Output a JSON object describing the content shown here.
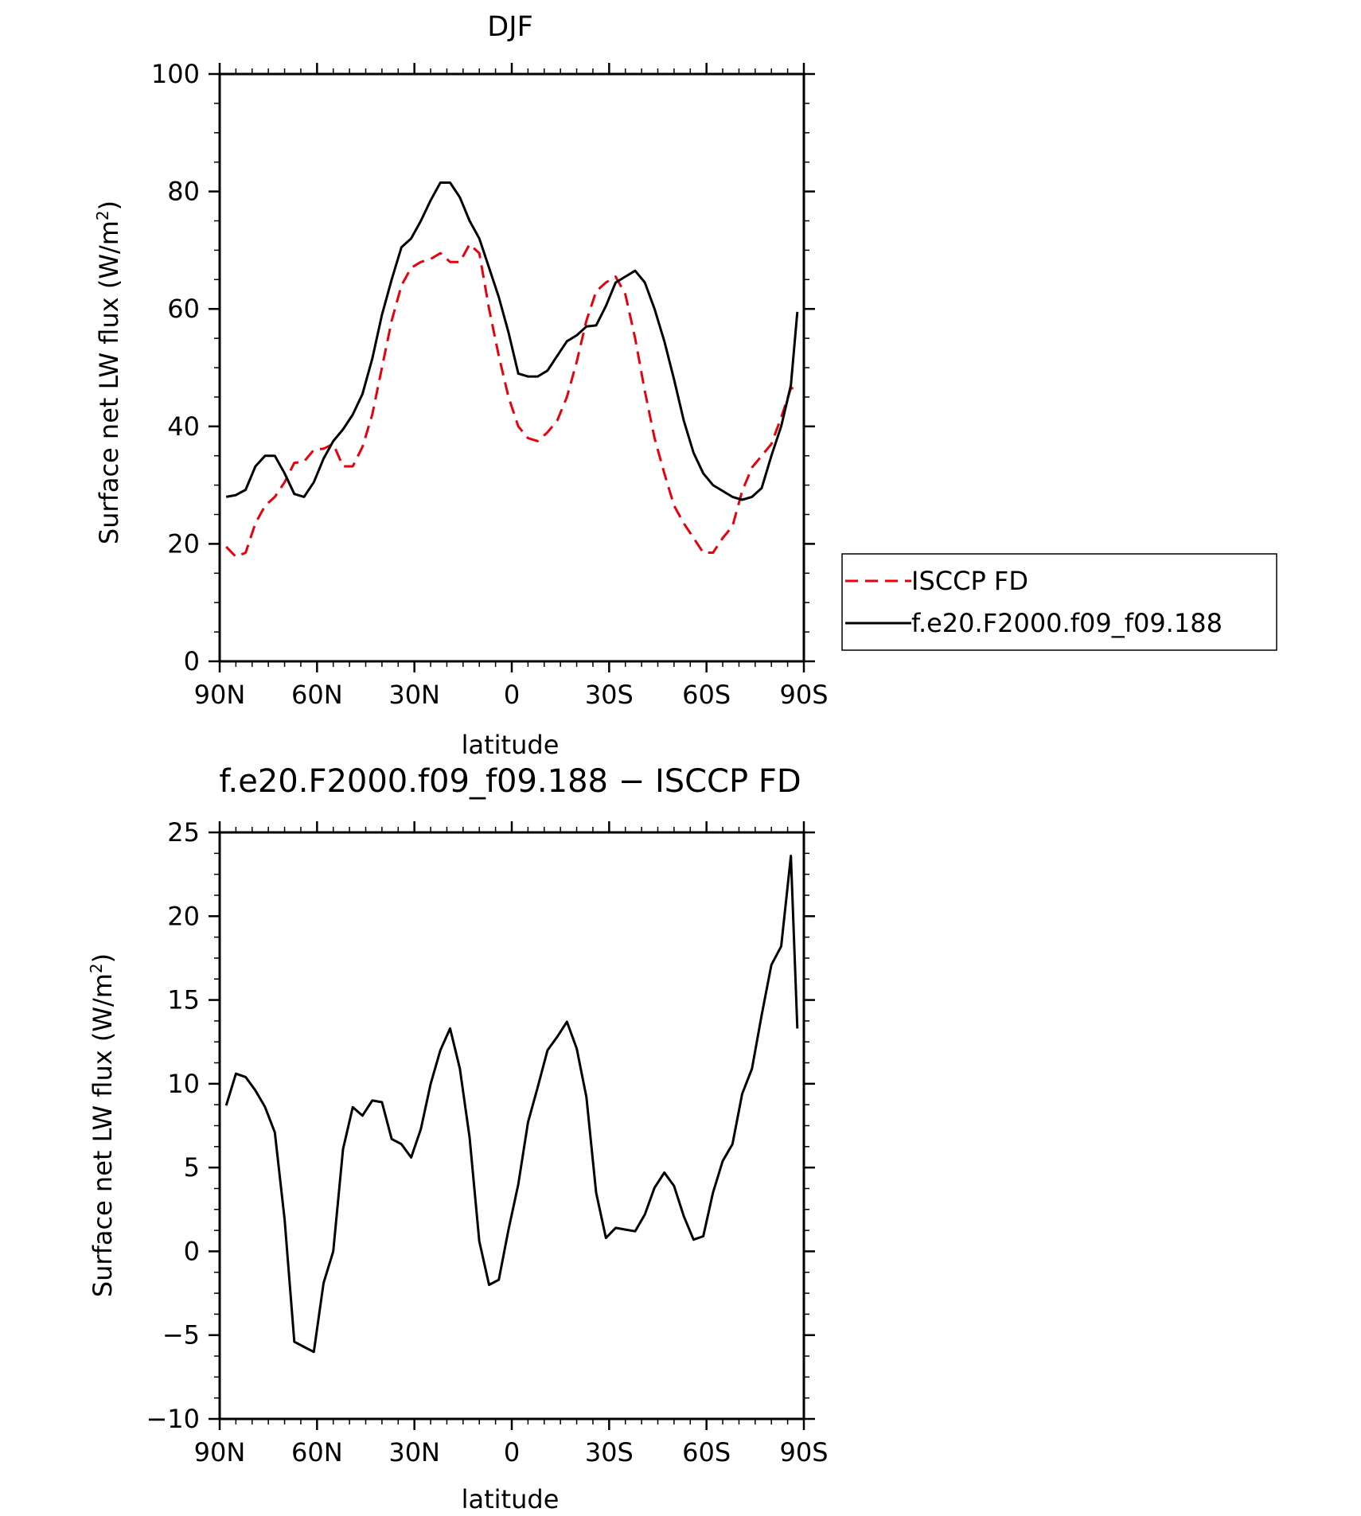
{
  "chart_data": [
    {
      "type": "line",
      "title": "DJF",
      "xlabel": "latitude",
      "ylabel": "Surface net LW flux (W/m",
      "ylabel_sup": "2",
      "ylabel_close": ")",
      "ylim": [
        0,
        100
      ],
      "xlim": [
        90,
        -90
      ],
      "xticks": [
        {
          "value": 90,
          "label": "90N"
        },
        {
          "value": 60,
          "label": "60N"
        },
        {
          "value": 30,
          "label": "30N"
        },
        {
          "value": 0,
          "label": "0"
        },
        {
          "value": -30,
          "label": "30S"
        },
        {
          "value": -60,
          "label": "60S"
        },
        {
          "value": -90,
          "label": "90S"
        }
      ],
      "yticks": [
        0,
        20,
        40,
        60,
        80,
        100
      ],
      "legend_position": "right",
      "series": [
        {
          "name": "ISCCP FD",
          "color": "#e8000b",
          "style": "dashed",
          "x": [
            88,
            85,
            82,
            79,
            76,
            73,
            70,
            67,
            64,
            61,
            58,
            55,
            52,
            49,
            46,
            43,
            40,
            37,
            34,
            31,
            28,
            25,
            22,
            19,
            16,
            13,
            10,
            7,
            4,
            1,
            -2,
            -5,
            -8,
            -11,
            -14,
            -17,
            -20,
            -23,
            -26,
            -29,
            -32,
            -35,
            -38,
            -41,
            -44,
            -47,
            -50,
            -53,
            -56,
            -59,
            -62,
            -65,
            -68,
            -71,
            -74,
            -77,
            -80,
            -83,
            -86,
            -88
          ],
          "values": [
            19.5,
            17.8,
            18.5,
            23.5,
            26.5,
            28.0,
            30.5,
            33.8,
            34.0,
            36.0,
            36.2,
            37.0,
            33.2,
            33.2,
            36.5,
            42.0,
            50.0,
            58.0,
            64.0,
            67.0,
            68.0,
            68.5,
            69.5,
            68.0,
            68.0,
            71.0,
            69.5,
            60.0,
            52.0,
            45.0,
            40.0,
            38.0,
            37.5,
            39.0,
            41.0,
            45.0,
            51.0,
            58.0,
            63.0,
            64.5,
            65.5,
            62.5,
            55.0,
            46.0,
            38.0,
            32.0,
            26.5,
            23.5,
            21.0,
            18.5,
            18.5,
            21.0,
            23.0,
            29.0,
            33.0,
            35.0,
            37.0,
            41.5,
            46.5,
            46.5
          ]
        },
        {
          "name": "f.e20.F2000.f09_f09.188",
          "color": "#000000",
          "style": "solid",
          "x": [
            88,
            85,
            82,
            79,
            76,
            73,
            70,
            67,
            64,
            61,
            58,
            55,
            52,
            49,
            46,
            43,
            40,
            37,
            34,
            31,
            28,
            25,
            22,
            19,
            16,
            13,
            10,
            7,
            4,
            1,
            -2,
            -5,
            -8,
            -11,
            -14,
            -17,
            -20,
            -23,
            -26,
            -29,
            -32,
            -35,
            -38,
            -41,
            -44,
            -47,
            -50,
            -53,
            -56,
            -59,
            -62,
            -65,
            -68,
            -71,
            -74,
            -77,
            -80,
            -83,
            -86,
            -88
          ],
          "values": [
            28.0,
            28.3,
            29.2,
            33.2,
            35.0,
            35.0,
            32.0,
            28.5,
            28.0,
            30.5,
            34.5,
            37.5,
            39.5,
            42.0,
            45.5,
            51.5,
            59.0,
            65.0,
            70.5,
            72.0,
            75.0,
            78.5,
            81.5,
            81.5,
            79.0,
            75.0,
            72.0,
            67.0,
            62.0,
            56.0,
            49.0,
            48.5,
            48.5,
            49.5,
            52.0,
            54.5,
            55.5,
            57.0,
            57.2,
            60.5,
            64.5,
            65.5,
            66.5,
            64.5,
            60.0,
            54.5,
            48.0,
            41.0,
            35.5,
            32.0,
            30.0,
            29.0,
            28.0,
            27.5,
            28.0,
            29.5,
            35.0,
            40.0,
            47.0,
            59.5
          ]
        }
      ]
    },
    {
      "type": "line",
      "title": "f.e20.F2000.f09_f09.188 − ISCCP FD",
      "xlabel": "latitude",
      "ylabel": "Surface net LW flux (W/m",
      "ylabel_sup": "2",
      "ylabel_close": ")",
      "ylim": [
        -10,
        25
      ],
      "xlim": [
        90,
        -90
      ],
      "xticks": [
        {
          "value": 90,
          "label": "90N"
        },
        {
          "value": 60,
          "label": "60N"
        },
        {
          "value": 30,
          "label": "30N"
        },
        {
          "value": 0,
          "label": "0"
        },
        {
          "value": -30,
          "label": "30S"
        },
        {
          "value": -60,
          "label": "60S"
        },
        {
          "value": -90,
          "label": "90S"
        }
      ],
      "yticks": [
        {
          "value": -10,
          "label": "−10"
        },
        {
          "value": -5,
          "label": "−5"
        },
        {
          "value": 0,
          "label": "0"
        },
        {
          "value": 5,
          "label": "5"
        },
        {
          "value": 10,
          "label": "10"
        },
        {
          "value": 15,
          "label": "15"
        },
        {
          "value": 20,
          "label": "20"
        },
        {
          "value": 25,
          "label": "25"
        }
      ],
      "series": [
        {
          "color": "#000000",
          "style": "solid",
          "x": [
            88,
            85,
            82,
            79,
            76,
            73,
            70,
            67,
            64,
            61,
            58,
            55,
            52,
            49,
            46,
            43,
            40,
            37,
            34,
            31,
            28,
            25,
            22,
            19,
            16,
            13,
            10,
            7,
            4,
            1,
            -2,
            -5,
            -8,
            -11,
            -14,
            -17,
            -20,
            -23,
            -26,
            -29,
            -32,
            -35,
            -38,
            -41,
            -44,
            -47,
            -50,
            -53,
            -56,
            -59,
            -62,
            -65,
            -68,
            -71,
            -74,
            -77,
            -80,
            -83,
            -86,
            -88
          ],
          "values": [
            8.7,
            10.6,
            10.4,
            9.6,
            8.6,
            7.1,
            1.9,
            -5.4,
            -5.7,
            -6.0,
            -1.9,
            0.0,
            6.1,
            8.6,
            8.1,
            9.0,
            8.9,
            6.7,
            6.4,
            5.6,
            7.3,
            10.0,
            12.0,
            13.3,
            10.9,
            6.8,
            0.6,
            -2.0,
            -1.7,
            1.3,
            4.0,
            7.7,
            9.8,
            12.0,
            12.8,
            13.7,
            12.1,
            9.2,
            3.5,
            0.8,
            1.4,
            1.3,
            1.2,
            2.2,
            3.8,
            4.7,
            3.9,
            2.1,
            0.7,
            0.9,
            3.5,
            5.4,
            6.4,
            9.4,
            10.9,
            14.1,
            17.1,
            18.2,
            23.6,
            13.3
          ]
        }
      ]
    }
  ]
}
